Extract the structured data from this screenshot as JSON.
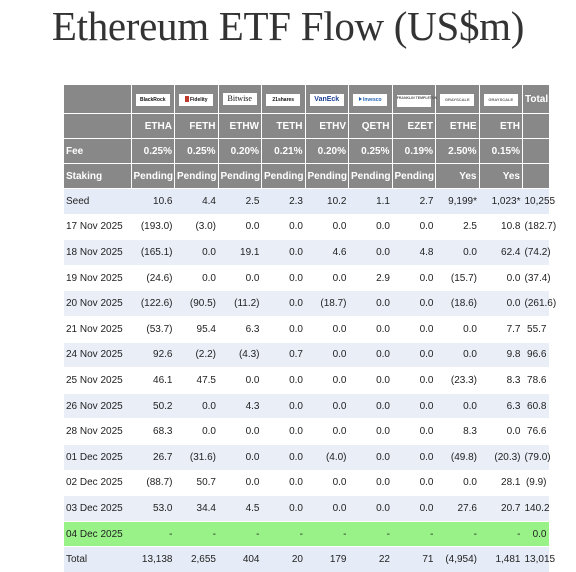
{
  "title": "Ethereum ETF Flow (US$m)",
  "issuers": [
    {
      "logo_text": "BlackRock",
      "ticker": "ETHA",
      "fee": "0.25%",
      "staking": "Pending"
    },
    {
      "logo_text": "Fidelity",
      "ticker": "FETH",
      "fee": "0.25%",
      "staking": "Pending"
    },
    {
      "logo_text": "Bitwise",
      "ticker": "ETHW",
      "fee": "0.20%",
      "staking": "Pending"
    },
    {
      "logo_text": "21shares",
      "ticker": "TETH",
      "fee": "0.21%",
      "staking": "Pending"
    },
    {
      "logo_text": "VanEck",
      "ticker": "ETHV",
      "fee": "0.20%",
      "staking": "Pending"
    },
    {
      "logo_text": "Invesco",
      "ticker": "QETH",
      "fee": "0.25%",
      "staking": "Pending"
    },
    {
      "logo_text": "FRANKLIN TEMPLETON",
      "ticker": "EZET",
      "fee": "0.19%",
      "staking": "Pending"
    },
    {
      "logo_text": "GRAYSCALE",
      "ticker": "ETHE",
      "fee": "2.50%",
      "staking": "Yes"
    },
    {
      "logo_text": "GRAYSCALE",
      "ticker": "ETH",
      "fee": "0.15%",
      "staking": "Yes"
    }
  ],
  "header_labels": {
    "total": "Total",
    "fee": "Fee",
    "staking": "Staking"
  },
  "rows": [
    {
      "label": "Seed",
      "values": [
        "10.6",
        "4.4",
        "2.5",
        "2.3",
        "10.2",
        "1.1",
        "2.7",
        "9,199*",
        "1,023*",
        "10,255"
      ],
      "style": "seed"
    },
    {
      "label": "17 Nov 2025",
      "values": [
        "(193.0)",
        "(3.0)",
        "0.0",
        "0.0",
        "0.0",
        "0.0",
        "0.0",
        "2.5",
        "10.8",
        "(182.7)"
      ],
      "style": "odd"
    },
    {
      "label": "18 Nov 2025",
      "values": [
        "(165.1)",
        "0.0",
        "19.1",
        "0.0",
        "4.6",
        "0.0",
        "4.8",
        "0.0",
        "62.4",
        "(74.2)"
      ],
      "style": "even"
    },
    {
      "label": "19 Nov 2025",
      "values": [
        "(24.6)",
        "0.0",
        "0.0",
        "0.0",
        "0.0",
        "2.9",
        "0.0",
        "(15.7)",
        "0.0",
        "(37.4)"
      ],
      "style": "odd"
    },
    {
      "label": "20 Nov 2025",
      "values": [
        "(122.6)",
        "(90.5)",
        "(11.2)",
        "0.0",
        "(18.7)",
        "0.0",
        "0.0",
        "(18.6)",
        "0.0",
        "(261.6)"
      ],
      "style": "even"
    },
    {
      "label": "21 Nov 2025",
      "values": [
        "(53.7)",
        "95.4",
        "6.3",
        "0.0",
        "0.0",
        "0.0",
        "0.0",
        "0.0",
        "7.7",
        "55.7"
      ],
      "style": "odd"
    },
    {
      "label": "24 Nov 2025",
      "values": [
        "92.6",
        "(2.2)",
        "(4.3)",
        "0.7",
        "0.0",
        "0.0",
        "0.0",
        "0.0",
        "9.8",
        "96.6"
      ],
      "style": "even"
    },
    {
      "label": "25 Nov 2025",
      "values": [
        "46.1",
        "47.5",
        "0.0",
        "0.0",
        "0.0",
        "0.0",
        "0.0",
        "(23.3)",
        "8.3",
        "78.6"
      ],
      "style": "odd"
    },
    {
      "label": "26 Nov 2025",
      "values": [
        "50.2",
        "0.0",
        "4.3",
        "0.0",
        "0.0",
        "0.0",
        "0.0",
        "0.0",
        "6.3",
        "60.8"
      ],
      "style": "even"
    },
    {
      "label": "28 Nov 2025",
      "values": [
        "68.3",
        "0.0",
        "0.0",
        "0.0",
        "0.0",
        "0.0",
        "0.0",
        "8.3",
        "0.0",
        "76.6"
      ],
      "style": "odd"
    },
    {
      "label": "01 Dec 2025",
      "values": [
        "26.7",
        "(31.6)",
        "0.0",
        "0.0",
        "(4.0)",
        "0.0",
        "0.0",
        "(49.8)",
        "(20.3)",
        "(79.0)"
      ],
      "style": "even"
    },
    {
      "label": "02 Dec 2025",
      "values": [
        "(88.7)",
        "50.7",
        "0.0",
        "0.0",
        "0.0",
        "0.0",
        "0.0",
        "0.0",
        "28.1",
        "(9.9)"
      ],
      "style": "odd"
    },
    {
      "label": "03 Dec 2025",
      "values": [
        "53.0",
        "34.4",
        "4.5",
        "0.0",
        "0.0",
        "0.0",
        "0.0",
        "27.6",
        "20.7",
        "140.2"
      ],
      "style": "even"
    },
    {
      "label": "04 Dec 2025",
      "values": [
        "-",
        "-",
        "-",
        "-",
        "-",
        "-",
        "-",
        "-",
        "-",
        "0.0"
      ],
      "style": "green"
    },
    {
      "label": "Total",
      "values": [
        "13,138",
        "2,655",
        "404",
        "20",
        "179",
        "22",
        "71",
        "(4,954)",
        "1,481",
        "13,015"
      ],
      "style": "totalrow"
    }
  ],
  "colors": {
    "header_bg": "#888888",
    "negative": "#e8101c",
    "highlight_row": "#99f288",
    "alt_row": "#e9eef7"
  }
}
